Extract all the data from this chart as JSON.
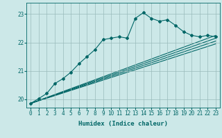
{
  "title": "",
  "xlabel": "Humidex (Indice chaleur)",
  "xlim": [
    -0.5,
    23.5
  ],
  "ylim": [
    19.7,
    23.4
  ],
  "xticks": [
    0,
    1,
    2,
    3,
    4,
    5,
    6,
    7,
    8,
    9,
    10,
    11,
    12,
    13,
    14,
    15,
    16,
    17,
    18,
    19,
    20,
    21,
    22,
    23
  ],
  "yticks": [
    20,
    21,
    22,
    23
  ],
  "background_color": "#cce8e8",
  "grid_color": "#99bbbb",
  "line_color": "#006666",
  "line1_x": [
    0,
    1,
    2,
    3,
    4,
    5,
    6,
    7,
    8,
    9,
    10,
    11,
    12,
    13,
    14,
    15,
    16,
    17,
    18,
    19,
    20,
    21,
    22,
    23
  ],
  "line1_y": [
    19.85,
    20.02,
    20.2,
    20.55,
    20.72,
    20.95,
    21.25,
    21.5,
    21.75,
    22.1,
    22.15,
    22.2,
    22.15,
    22.85,
    23.05,
    22.85,
    22.75,
    22.8,
    22.6,
    22.38,
    22.25,
    22.2,
    22.25,
    22.2
  ],
  "line2_x": [
    0,
    23
  ],
  "line2_y": [
    19.85,
    22.25
  ],
  "line3_x": [
    0,
    23
  ],
  "line3_y": [
    19.85,
    22.15
  ],
  "line4_x": [
    0,
    23
  ],
  "line4_y": [
    19.85,
    22.05
  ],
  "line5_x": [
    0,
    23
  ],
  "line5_y": [
    19.85,
    21.95
  ],
  "tick_fontsize": 5.5,
  "xlabel_fontsize": 6.5
}
